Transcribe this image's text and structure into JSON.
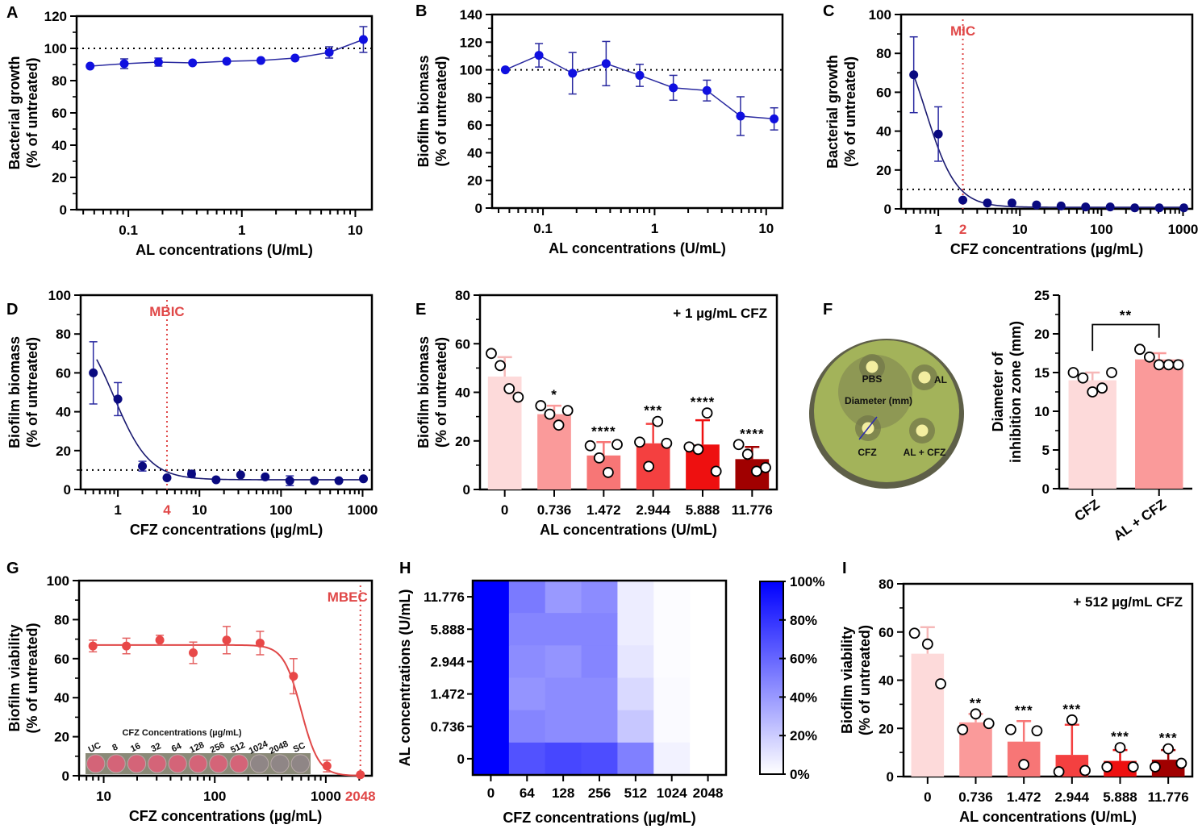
{
  "figure": {
    "panel_labels": [
      "A",
      "B",
      "C",
      "D",
      "E",
      "F",
      "G",
      "H",
      "I"
    ]
  },
  "chart_data": [
    {
      "id": "A",
      "type": "scatter",
      "xlabel": "AL concentrations (U/mL)",
      "ylabel": [
        "Bacterial growth",
        "(% of untreated)"
      ],
      "xscale": "log",
      "xlim": [
        0.035,
        14
      ],
      "ylim": [
        0,
        120
      ],
      "xticks": [
        0.1,
        1,
        10
      ],
      "xtick_labels": [
        "0.1",
        "1",
        "10"
      ],
      "yticks": [
        0,
        20,
        40,
        60,
        80,
        100,
        120
      ],
      "reference_line": 100,
      "color": "#1010e0",
      "x": [
        0.046,
        0.092,
        0.184,
        0.368,
        0.736,
        1.472,
        2.944,
        5.888,
        11.776
      ],
      "y": [
        89,
        90.5,
        91.5,
        91,
        92,
        92.5,
        94,
        97.5,
        105.5
      ],
      "err": [
        0,
        3,
        2.5,
        0,
        0,
        0,
        0,
        3.5,
        8
      ],
      "connect": "line"
    },
    {
      "id": "B",
      "type": "scatter",
      "xlabel": "AL concentrations (U/mL)",
      "ylabel": [
        "Biofilm biomass",
        "(% of untreated)"
      ],
      "xscale": "log",
      "xlim": [
        0.035,
        14
      ],
      "ylim": [
        0,
        140
      ],
      "xticks": [
        0.1,
        1,
        10
      ],
      "xtick_labels": [
        "0.1",
        "1",
        "10"
      ],
      "yticks": [
        0,
        20,
        40,
        60,
        80,
        100,
        120,
        140
      ],
      "reference_line": 100,
      "color": "#1010e0",
      "x": [
        0.046,
        0.092,
        0.184,
        0.368,
        0.736,
        1.472,
        2.944,
        5.888,
        11.776
      ],
      "y": [
        100,
        110.5,
        97.5,
        104.5,
        96,
        87,
        85,
        66.5,
        64.5
      ],
      "err": [
        0,
        8.5,
        15,
        16,
        8,
        9,
        7.5,
        14,
        8
      ],
      "connect": "line"
    },
    {
      "id": "C",
      "type": "scatter",
      "xlabel": "CFZ concentrations (µg/mL)",
      "ylabel": [
        "Bacterial growth",
        "(% of untreated)"
      ],
      "xscale": "log",
      "xlim": [
        0.35,
        1300
      ],
      "ylim": [
        0,
        100
      ],
      "xticks": [
        1,
        10,
        100,
        1000
      ],
      "xtick_labels": [
        "1",
        "10",
        "100",
        "1000"
      ],
      "yticks": [
        0,
        20,
        40,
        60,
        80,
        100
      ],
      "reference_line": 10,
      "marker_line": {
        "x": 2,
        "label": "MIC",
        "tick_label": "2",
        "color": "#e04848"
      },
      "color": "#0a0a80",
      "x": [
        0.5,
        1,
        2,
        4,
        8,
        16,
        32,
        64,
        128,
        256,
        512,
        1024
      ],
      "y": [
        69,
        38.5,
        4.5,
        3,
        3,
        2,
        1.5,
        1,
        1,
        0.5,
        0.5,
        0.5
      ],
      "err": [
        19.5,
        14,
        0,
        0,
        0,
        0,
        0,
        0,
        0,
        0,
        0,
        0
      ],
      "fit": {
        "top": 100,
        "bottom": 0.8,
        "ic50": 0.7,
        "hill": 2.3
      }
    },
    {
      "id": "D",
      "type": "scatter",
      "xlabel": "CFZ concentrations (µg/mL)",
      "ylabel": [
        "Biofilm biomass",
        "(% of untreated)"
      ],
      "xscale": "log",
      "xlim": [
        0.35,
        1300
      ],
      "ylim": [
        0,
        100
      ],
      "xticks": [
        1,
        10,
        100,
        1000
      ],
      "xtick_labels": [
        "1",
        "10",
        "100",
        "1000"
      ],
      "yticks": [
        0,
        20,
        40,
        60,
        80,
        100
      ],
      "reference_line": 10,
      "marker_line": {
        "x": 4,
        "label": "MBIC",
        "tick_label": "4",
        "color": "#e04848"
      },
      "color": "#0a0a80",
      "x": [
        0.5,
        1,
        2,
        4,
        8,
        16,
        32,
        64,
        128,
        256,
        512,
        1024
      ],
      "y": [
        60,
        46.5,
        12,
        6,
        8,
        5,
        7.5,
        6.5,
        4.5,
        4.5,
        4.5,
        5.5
      ],
      "err": [
        16,
        8.5,
        2.5,
        0,
        1.5,
        0,
        0,
        0,
        2.5,
        0,
        0,
        0
      ],
      "fit": {
        "top": 90,
        "bottom": 5,
        "ic50": 0.9,
        "hill": 2.0
      }
    },
    {
      "id": "E",
      "type": "bar",
      "annotation": "+ 1 µg/mL CFZ",
      "xlabel": "AL concentrations (U/mL)",
      "ylabel": [
        "Biofilm biomass",
        "(% of untreated)"
      ],
      "ylim": [
        0,
        80
      ],
      "yticks": [
        0,
        20,
        40,
        60,
        80
      ],
      "categories": [
        "0",
        "0.736",
        "1.472",
        "2.944",
        "5.888",
        "11.776"
      ],
      "values": [
        46.5,
        31,
        14,
        19,
        18.5,
        12.5
      ],
      "err": [
        8,
        3.5,
        5.5,
        8,
        10,
        5
      ],
      "colors": [
        "#fddada",
        "#fa9a9a",
        "#f77676",
        "#f44040",
        "#ee1010",
        "#a00000"
      ],
      "significance": [
        "",
        "*",
        "****",
        "***",
        "****",
        "****"
      ],
      "points": [
        [
          56,
          51,
          41.5,
          38
        ],
        [
          34.5,
          31,
          26.5,
          32.5
        ],
        [
          18,
          13,
          7,
          18.5
        ],
        [
          19.5,
          9.5,
          28,
          19
        ],
        [
          17.5,
          16.5,
          31.5,
          7.5
        ],
        [
          18.5,
          14.5,
          7.5,
          9
        ]
      ]
    },
    {
      "id": "F",
      "type": "bar",
      "photo_labels": [
        "PBS",
        "AL",
        "Diameter (mm)",
        "CFZ",
        "AL + CFZ"
      ],
      "xlabel": "",
      "ylabel": [
        "Diameter of",
        "inhibition zone (mm)"
      ],
      "ylim": [
        0,
        25
      ],
      "yticks": [
        0,
        5,
        10,
        15,
        20,
        25
      ],
      "categories": [
        "CFZ",
        "AL + CFZ"
      ],
      "values": [
        14,
        16.7
      ],
      "err": [
        1,
        0.8
      ],
      "colors": [
        "#fddada",
        "#fa9a9a"
      ],
      "significance_bracket": "**",
      "points": [
        [
          15,
          14.3,
          12.5,
          13,
          15
        ],
        [
          18,
          17,
          16,
          16,
          16
        ]
      ]
    },
    {
      "id": "G",
      "type": "scatter",
      "xlabel": "CFZ concentrations (µg/mL)",
      "ylabel": [
        "Biofilm viability",
        "(% of untreated)"
      ],
      "xscale": "log",
      "xlim": [
        6,
        2600
      ],
      "ylim": [
        0,
        100
      ],
      "xticks": [
        10,
        100,
        1000
      ],
      "xtick_labels": [
        "10",
        "100",
        "1000"
      ],
      "yticks": [
        0,
        20,
        40,
        60,
        80,
        100
      ],
      "marker_line": {
        "x": 2048,
        "label": "MBEC",
        "tick_label": "2048",
        "color": "#e04848"
      },
      "color": "#e84848",
      "x": [
        8,
        16,
        32,
        64,
        128,
        256,
        512,
        1024,
        2048
      ],
      "y": [
        66.5,
        66.5,
        69.5,
        63,
        69.5,
        68,
        51,
        5,
        0.5
      ],
      "err": [
        3,
        4,
        2.5,
        5.5,
        7,
        6,
        9,
        3,
        0
      ],
      "fit": {
        "top": 67,
        "bottom": 0,
        "ic50": 600,
        "hill": 5.5
      },
      "inset": {
        "title": "CFZ Concentrations (µg/mL)",
        "wells": [
          "UC",
          "8",
          "16",
          "32",
          "64",
          "128",
          "256",
          "512",
          "1024",
          "2048",
          "SC"
        ],
        "well_colors": [
          "#d46478",
          "#d46478",
          "#d46478",
          "#d46478",
          "#d46478",
          "#d46478",
          "#d46478",
          "#d46478",
          "#8f8686",
          "#8f8686",
          "#8f8686"
        ]
      }
    },
    {
      "id": "H",
      "type": "heatmap",
      "xlabel": "CFZ concentrations (µg/mL)",
      "ylabel": "AL concentrations (U/mL)",
      "x_categories": [
        "0",
        "64",
        "128",
        "256",
        "512",
        "1024",
        "2048"
      ],
      "y_categories": [
        "11.776",
        "5.888",
        "2.944",
        "1.472",
        "0.736",
        "0"
      ],
      "values": [
        [
          100,
          52,
          40,
          45,
          7,
          1,
          0
        ],
        [
          100,
          48,
          48,
          48,
          7,
          1,
          0
        ],
        [
          100,
          45,
          42,
          48,
          10,
          1,
          0
        ],
        [
          100,
          42,
          45,
          45,
          15,
          2,
          0
        ],
        [
          100,
          48,
          45,
          45,
          22,
          2,
          0
        ],
        [
          100,
          68,
          72,
          70,
          50,
          5,
          0
        ]
      ],
      "colorbar": {
        "min": 0,
        "max": 100,
        "ticks": [
          "0%",
          "20%",
          "40%",
          "60%",
          "80%",
          "100%"
        ],
        "low_color": "#ffffff",
        "high_color": "#0000ff"
      }
    },
    {
      "id": "I",
      "type": "bar",
      "annotation": "+ 512 µg/mL CFZ",
      "xlabel": "AL concentrations (U/mL)",
      "ylabel": [
        "Biofilm viability",
        "(% of untreated)"
      ],
      "ylim": [
        0,
        80
      ],
      "yticks": [
        0,
        20,
        40,
        60,
        80
      ],
      "categories": [
        "0",
        "0.736",
        "1.472",
        "2.944",
        "5.888",
        "11.776"
      ],
      "values": [
        51,
        22.5,
        14.5,
        9,
        6.5,
        7
      ],
      "err": [
        11,
        3.5,
        8.5,
        12.5,
        4.5,
        4
      ],
      "colors": [
        "#fddada",
        "#fa9a9a",
        "#f77676",
        "#f44040",
        "#ee1010",
        "#a00000"
      ],
      "significance": [
        "",
        "**",
        "***",
        "***",
        "***",
        "***"
      ],
      "points": [
        [
          59.5,
          55,
          38.5
        ],
        [
          19.5,
          26,
          22
        ],
        [
          19.5,
          5,
          19
        ],
        [
          2,
          23.5,
          2.5
        ],
        [
          4,
          12,
          4
        ],
        [
          4,
          11.5,
          5.5
        ]
      ]
    }
  ]
}
